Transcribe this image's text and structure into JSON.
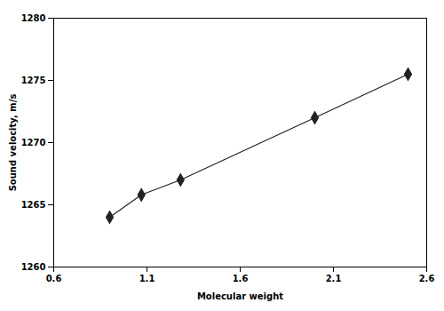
{
  "chart_data": {
    "type": "line",
    "x": [
      0.9,
      1.07,
      1.28,
      2.0,
      2.5
    ],
    "values": [
      1264.0,
      1265.8,
      1267.0,
      1272.0,
      1275.5
    ],
    "xlim": [
      0.6,
      2.6
    ],
    "ylim": [
      1260,
      1280
    ],
    "xticks": [
      0.6,
      1.1,
      1.6,
      2.1,
      2.6
    ],
    "yticks": [
      1260,
      1265,
      1270,
      1275,
      1280
    ],
    "xlabel": "Molecular weight",
    "ylabel": "Sound velocity, m/s",
    "color": "#222222",
    "marker": "diamond",
    "grid": false
  }
}
